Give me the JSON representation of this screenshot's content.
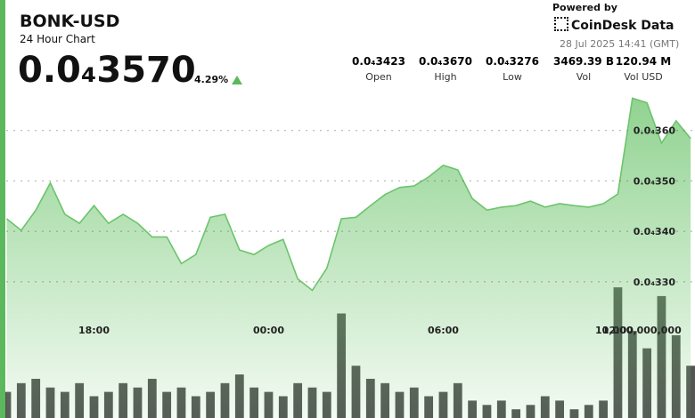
{
  "chart_data": {
    "type": "line",
    "title": "BONK-USD",
    "subtitle": "24 Hour Chart",
    "price": "0.0₄3570",
    "change": "4.29%",
    "stats": [
      {
        "value": "0.0₄3423",
        "label": "Open"
      },
      {
        "value": "0.0₄3670",
        "label": "High"
      },
      {
        "value": "0.0₄3276",
        "label": "Low"
      },
      {
        "value": "3469.39 B",
        "label": "Vol"
      },
      {
        "value": "120.94 M",
        "label": "Vol USD"
      }
    ],
    "branding": {
      "powered_by": "Powered by",
      "brand": "CoinDesk Data",
      "timestamp": "28 Jul 2025 14:41 (GMT)"
    },
    "color": "#6cc46c",
    "values": [
      3.425e-05,
      3.402e-05,
      3.442e-05,
      3.496e-05,
      3.434e-05,
      3.416e-05,
      3.451e-05,
      3.416e-05,
      3.434e-05,
      3.416e-05,
      3.389e-05,
      3.389e-05,
      3.336e-05,
      3.354e-05,
      3.428e-05,
      3.434e-05,
      3.363e-05,
      3.354e-05,
      3.372e-05,
      3.384e-05,
      3.306e-05,
      3.283e-05,
      3.327e-05,
      3.425e-05,
      3.428e-05,
      3.451e-05,
      3.473e-05,
      3.487e-05,
      3.49e-05,
      3.508e-05,
      3.531e-05,
      3.522e-05,
      3.465e-05,
      3.442e-05,
      3.448e-05,
      3.451e-05,
      3.46e-05,
      3.448e-05,
      3.455e-05,
      3.451e-05,
      3.448e-05,
      3.455e-05,
      3.474e-05,
      3.664e-05,
      3.655e-05,
      3.575e-05,
      3.619e-05,
      3.584e-05
    ],
    "volume_color": "#555555",
    "volumes": [
      3000000000,
      4000000000,
      4500000000,
      3500000000,
      3000000000,
      4000000000,
      2500000000,
      3000000000,
      4000000000,
      3500000000,
      4500000000,
      3000000000,
      3500000000,
      2500000000,
      3000000000,
      4000000000,
      5000000000,
      3500000000,
      3000000000,
      2500000000,
      4000000000,
      3500000000,
      3000000000,
      12000000000,
      6000000000,
      4500000000,
      4000000000,
      3000000000,
      3500000000,
      2500000000,
      3000000000,
      4000000000,
      2000000000,
      1500000000,
      2000000000,
      1000000000,
      1500000000,
      2500000000,
      2000000000,
      1000000000,
      1500000000,
      2000000000,
      15000000000,
      10000000000,
      8000000000,
      14000000000,
      9500000000,
      6000000000
    ],
    "xlim": [
      0,
      47.3
    ],
    "xticks": [
      {
        "value": 6,
        "label": "18:00"
      },
      {
        "value": 18,
        "label": "00:00"
      },
      {
        "value": 30,
        "label": "06:00"
      },
      {
        "value": 42,
        "label": "12:00"
      }
    ],
    "ylim": [
      3.03e-05,
      3.7e-05
    ],
    "yticks": [
      {
        "value": 3.3e-05,
        "label": "0.0₄330"
      },
      {
        "value": 3.4e-05,
        "label": "0.0₄340"
      },
      {
        "value": 3.5e-05,
        "label": "0.0₄350"
      },
      {
        "value": 3.6e-05,
        "label": "0.0₄360"
      }
    ],
    "y2lim": [
      0,
      38800000000
    ],
    "y2ticks": [
      {
        "value": 10000000000,
        "label": "10,000,000,000"
      }
    ],
    "grid": true
  }
}
